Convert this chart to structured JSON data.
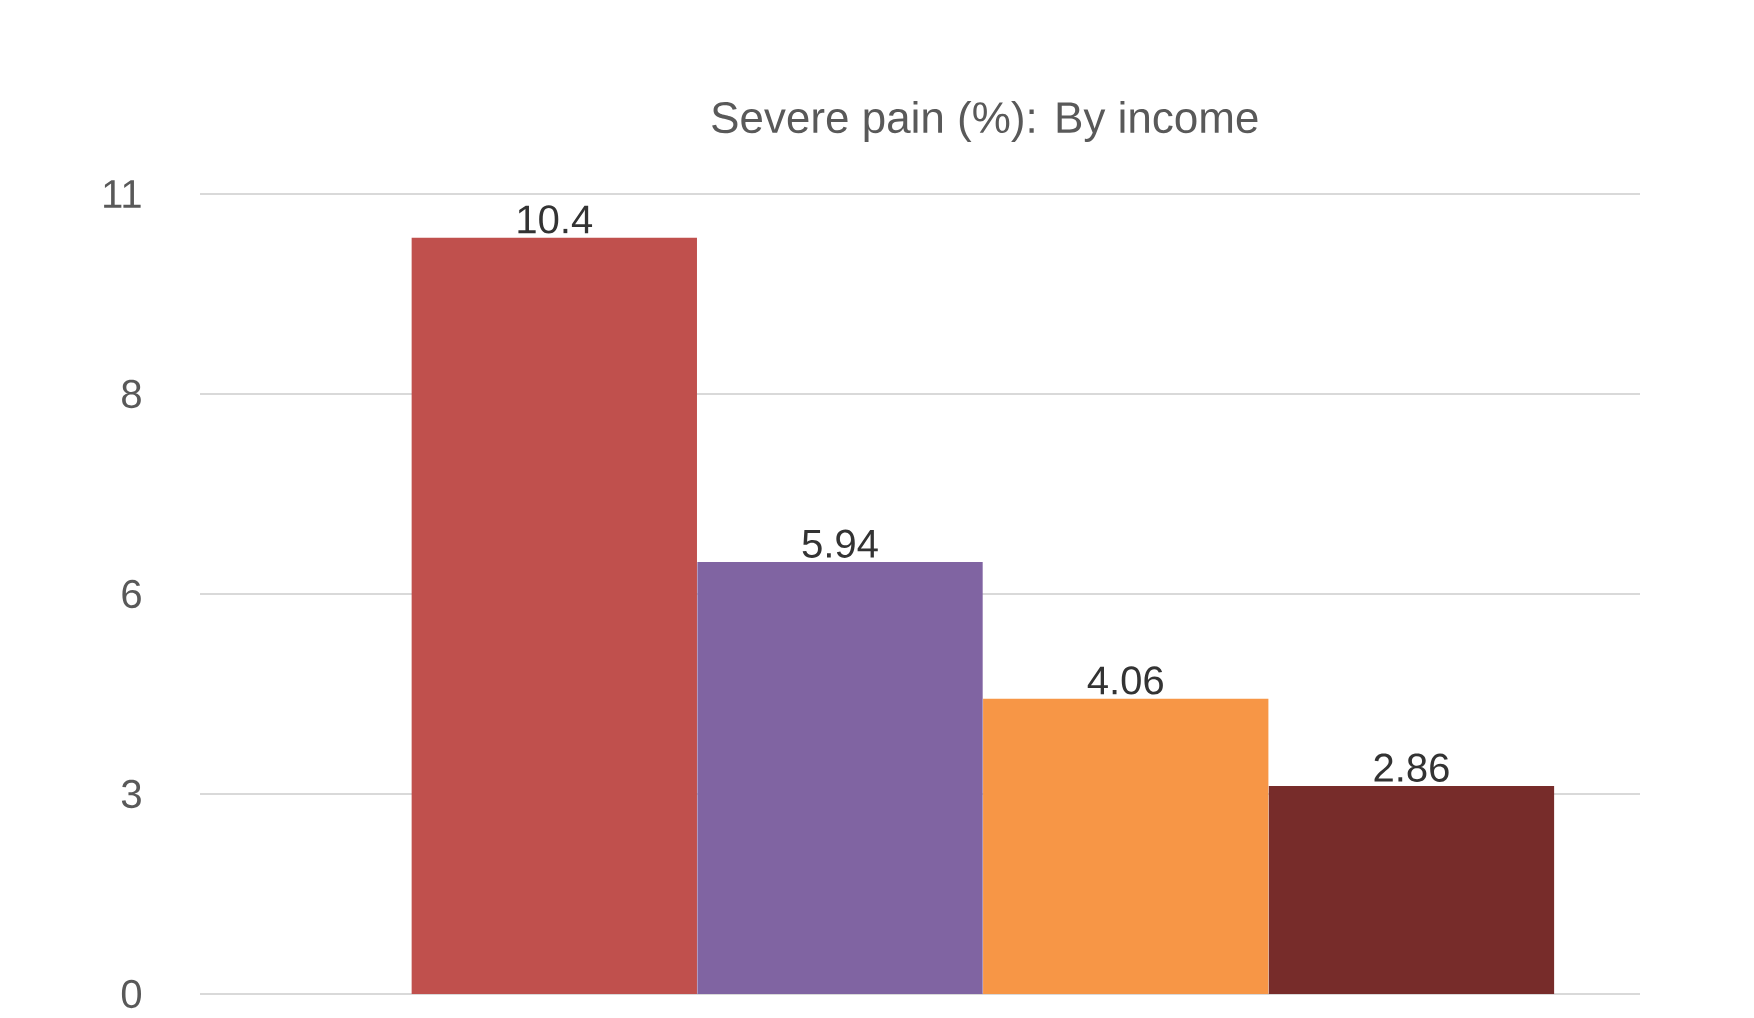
{
  "chart_data": {
    "type": "bar",
    "title": "Severe pain (%): By income",
    "categories": [
      null,
      null,
      null,
      null
    ],
    "values": [
      10.4,
      5.94,
      4.06,
      2.86
    ],
    "colors": [
      "#c0504d",
      "#8064a2",
      "#f79646",
      "#772c2a"
    ],
    "ylim": [
      0,
      11
    ],
    "yticks": [
      0,
      {
        "value": 2.75,
        "label": "3"
      },
      {
        "value": 5.5,
        "label": "6"
      },
      {
        "value": 8.25,
        "label": "8"
      },
      11
    ],
    "grid": "y",
    "data_labels": true
  }
}
